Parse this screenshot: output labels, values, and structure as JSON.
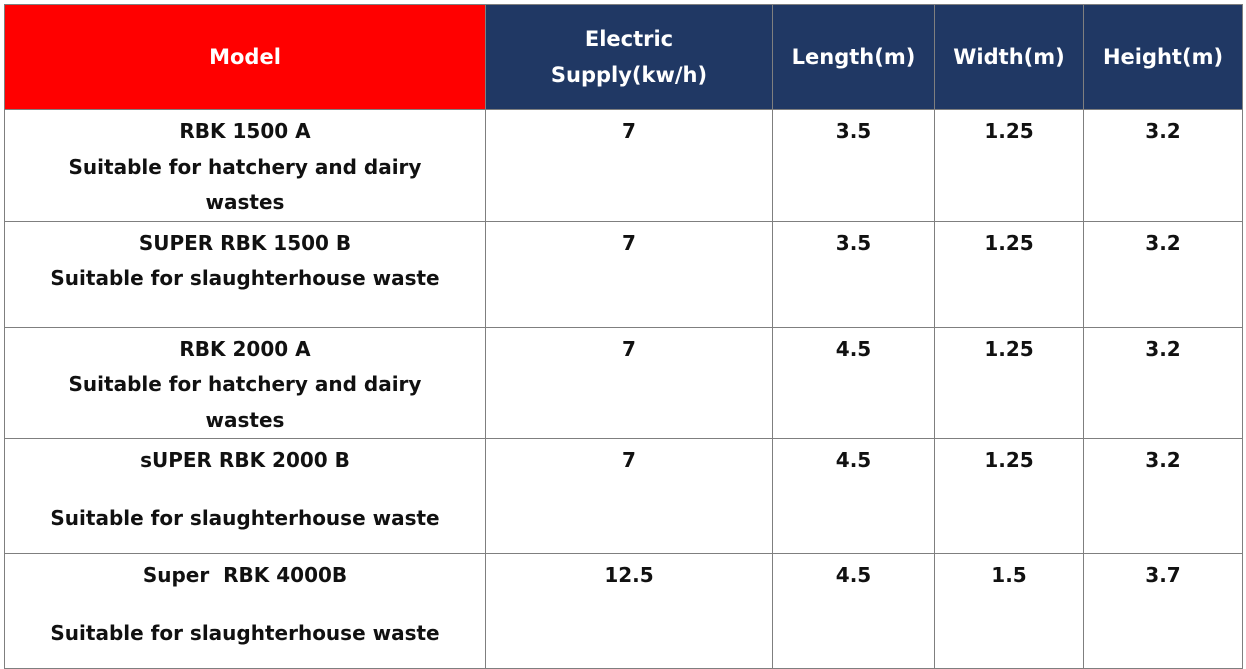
{
  "table": {
    "headers": {
      "model": "Model",
      "electric_line1": "Electric",
      "electric_line2": "Supply(kw/h)",
      "length": "Length(m)",
      "width": "Width(m)",
      "height": "Height(m)"
    },
    "rows": [
      {
        "model_name": "RBK 1500 A",
        "use_line1": "Suitable for hatchery and dairy",
        "use_line2": "wastes",
        "electric": "7",
        "length": "3.5",
        "width": "1.25",
        "height": "3.2"
      },
      {
        "model_name": "SUPER RBK 1500 B",
        "use_line1": "Suitable for slaughterhouse waste",
        "electric": "7",
        "length": "3.5",
        "width": "1.25",
        "height": "3.2"
      },
      {
        "model_name": "RBK 2000 A",
        "use_line1": "Suitable for hatchery and dairy",
        "use_line2": "wastes",
        "electric": "7",
        "length": "4.5",
        "width": "1.25",
        "height": "3.2"
      },
      {
        "model_name": "sUPER RBK 2000 B",
        "use_line1": "Suitable for slaughterhouse waste",
        "electric": "7",
        "length": "4.5",
        "width": "1.25",
        "height": "3.2"
      },
      {
        "model_name": "Super  RBK 4000B",
        "use_line1": "Suitable for slaughterhouse waste",
        "electric": "12.5",
        "length": "4.5",
        "width": "1.5",
        "height": "3.7"
      }
    ],
    "colors": {
      "model_header_bg": "#ff0000",
      "header_bg": "#203864",
      "header_text": "#ffffff",
      "border": "#7f7f7f"
    }
  }
}
